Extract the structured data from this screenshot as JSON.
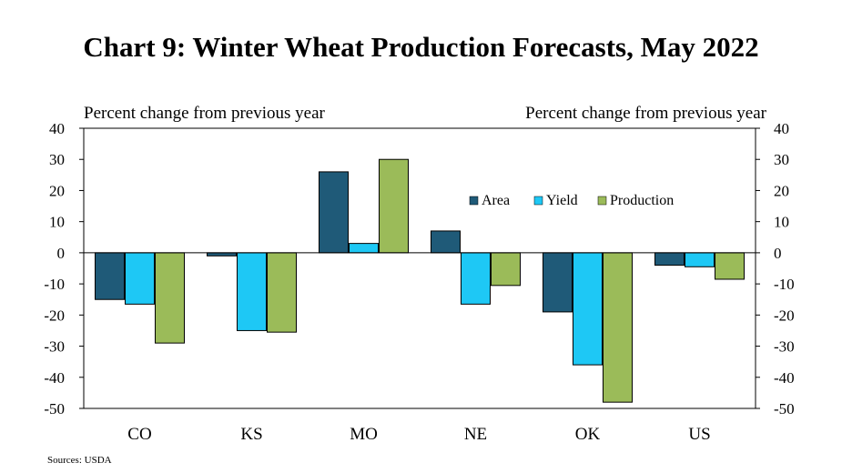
{
  "chart_data": {
    "type": "bar",
    "title": "Chart 9: Winter Wheat Production Forecasts, May 2022",
    "ylabel_left": "Percent change from previous year",
    "ylabel_right": "Percent change from previous year",
    "categories": [
      "CO",
      "KS",
      "MO",
      "NE",
      "OK",
      "US"
    ],
    "series": [
      {
        "name": "Area",
        "color": "#1f5a78",
        "values": [
          -15,
          -1,
          26,
          7,
          -19,
          -4
        ]
      },
      {
        "name": "Yield",
        "color": "#1ec8f5",
        "values": [
          -16.5,
          -25,
          3,
          -16.5,
          -36,
          -4.5
        ]
      },
      {
        "name": "Production",
        "color": "#9bbb59",
        "values": [
          -29,
          -25.5,
          30,
          -10.5,
          -48,
          -8.5
        ]
      }
    ],
    "ylim": [
      -50,
      40
    ],
    "yticks": [
      40,
      30,
      20,
      10,
      0,
      -10,
      -20,
      -30,
      -40,
      -50
    ],
    "legend_position": "upper-right-inside",
    "grid": false
  },
  "sources": "Sources: USDA"
}
